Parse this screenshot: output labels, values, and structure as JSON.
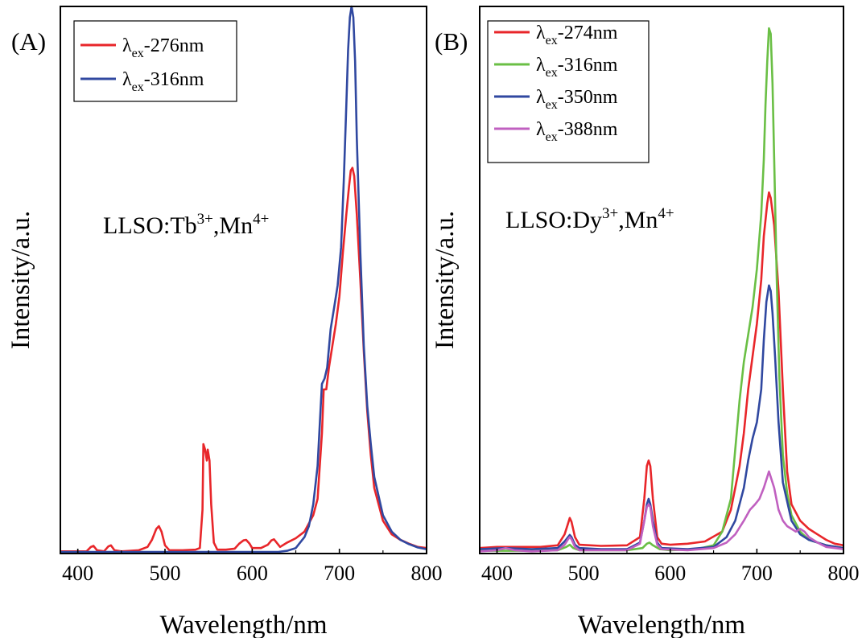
{
  "chart_data": [
    {
      "type": "line",
      "panel_label": "(A)",
      "sample_label": {
        "base": "LLSO:Tb",
        "sup1": "3+",
        "mid": ",Mn",
        "sup2": "4+"
      },
      "xlabel": "Wavelength/nm",
      "ylabel": "Intensity/a.u.",
      "xlim": [
        380,
        800
      ],
      "ylim": [
        0,
        1.0
      ],
      "xticks": [
        400,
        500,
        600,
        700,
        800
      ],
      "legend_position": "top-left",
      "grid": false,
      "series": [
        {
          "name": {
            "prefix": "λ",
            "sub": "ex",
            "suffix": "-276nm"
          },
          "color": "#e8262a",
          "x": [
            380,
            400,
            410,
            415,
            418,
            422,
            430,
            435,
            438,
            442,
            450,
            470,
            480,
            485,
            490,
            493,
            496,
            500,
            505,
            520,
            535,
            540,
            543,
            544,
            546,
            548,
            549,
            551,
            553,
            556,
            560,
            570,
            580,
            585,
            590,
            593,
            597,
            600,
            610,
            618,
            622,
            625,
            628,
            632,
            640,
            650,
            660,
            670,
            675,
            680,
            682,
            685,
            688,
            692,
            696,
            700,
            704,
            708,
            711,
            713,
            715,
            717,
            720,
            724,
            728,
            732,
            736,
            740,
            750,
            760,
            770,
            780,
            790,
            800
          ],
          "y": [
            0.004,
            0.004,
            0.004,
            0.012,
            0.014,
            0.006,
            0.004,
            0.013,
            0.015,
            0.006,
            0.004,
            0.006,
            0.012,
            0.025,
            0.045,
            0.05,
            0.04,
            0.015,
            0.006,
            0.006,
            0.007,
            0.01,
            0.08,
            0.2,
            0.19,
            0.17,
            0.19,
            0.17,
            0.09,
            0.02,
            0.007,
            0.007,
            0.009,
            0.018,
            0.024,
            0.025,
            0.018,
            0.01,
            0.01,
            0.016,
            0.024,
            0.026,
            0.02,
            0.012,
            0.02,
            0.028,
            0.04,
            0.07,
            0.1,
            0.22,
            0.3,
            0.3,
            0.34,
            0.38,
            0.42,
            0.47,
            0.55,
            0.62,
            0.67,
            0.7,
            0.705,
            0.69,
            0.62,
            0.5,
            0.37,
            0.26,
            0.18,
            0.12,
            0.06,
            0.035,
            0.025,
            0.018,
            0.012,
            0.01
          ]
        },
        {
          "name": {
            "prefix": "λ",
            "sub": "ex",
            "suffix": "-316nm"
          },
          "color": "#3048a0",
          "x": [
            380,
            450,
            500,
            550,
            600,
            620,
            630,
            640,
            650,
            660,
            665,
            670,
            675,
            678,
            680,
            683,
            686,
            690,
            694,
            698,
            702,
            705,
            708,
            710,
            712,
            714,
            716,
            718,
            720,
            724,
            728,
            732,
            736,
            740,
            750,
            760,
            770,
            780,
            790,
            800
          ],
          "y": [
            0.003,
            0.003,
            0.003,
            0.003,
            0.003,
            0.003,
            0.003,
            0.005,
            0.01,
            0.03,
            0.05,
            0.09,
            0.16,
            0.25,
            0.31,
            0.32,
            0.34,
            0.41,
            0.45,
            0.49,
            0.56,
            0.68,
            0.82,
            0.92,
            0.98,
            1.0,
            0.98,
            0.9,
            0.76,
            0.55,
            0.38,
            0.27,
            0.2,
            0.14,
            0.07,
            0.04,
            0.025,
            0.017,
            0.011,
            0.008
          ]
        }
      ]
    },
    {
      "type": "line",
      "panel_label": "(B)",
      "sample_label": {
        "base": "LLSO:Dy",
        "sup1": "3+",
        "mid": ",Mn",
        "sup2": "4+"
      },
      "xlabel": "Wavelength/nm",
      "ylabel": "Intensity/a.u.",
      "xlim": [
        380,
        800
      ],
      "ylim": [
        0,
        1.0
      ],
      "xticks": [
        400,
        500,
        600,
        700,
        800
      ],
      "legend_position": "top-left",
      "grid": false,
      "series": [
        {
          "name": {
            "prefix": "λ",
            "sub": "ex",
            "suffix": "-274nm"
          },
          "color": "#e8262a",
          "x": [
            380,
            400,
            450,
            470,
            478,
            482,
            484,
            486,
            490,
            495,
            520,
            550,
            565,
            570,
            573,
            575,
            577,
            580,
            585,
            590,
            600,
            620,
            640,
            660,
            670,
            680,
            685,
            690,
            695,
            700,
            705,
            708,
            712,
            714,
            716,
            720,
            725,
            730,
            735,
            740,
            750,
            760,
            770,
            780,
            790,
            800
          ],
          "y": [
            0.01,
            0.012,
            0.012,
            0.015,
            0.035,
            0.055,
            0.065,
            0.058,
            0.03,
            0.016,
            0.014,
            0.015,
            0.03,
            0.1,
            0.16,
            0.17,
            0.16,
            0.1,
            0.03,
            0.018,
            0.016,
            0.018,
            0.022,
            0.04,
            0.08,
            0.16,
            0.22,
            0.3,
            0.36,
            0.42,
            0.5,
            0.58,
            0.64,
            0.66,
            0.65,
            0.6,
            0.48,
            0.3,
            0.15,
            0.09,
            0.06,
            0.045,
            0.035,
            0.025,
            0.018,
            0.015
          ]
        },
        {
          "name": {
            "prefix": "λ",
            "sub": "ex",
            "suffix": "-316nm"
          },
          "color": "#6abf45",
          "x": [
            380,
            420,
            450,
            470,
            480,
            484,
            488,
            495,
            520,
            550,
            568,
            573,
            576,
            580,
            588,
            600,
            630,
            650,
            660,
            670,
            675,
            680,
            685,
            690,
            695,
            700,
            705,
            708,
            710,
            712,
            714,
            716,
            718,
            720,
            723,
            726,
            730,
            735,
            740,
            750,
            760,
            780,
            800
          ],
          "y": [
            0.005,
            0.005,
            0.005,
            0.006,
            0.012,
            0.016,
            0.01,
            0.006,
            0.006,
            0.006,
            0.01,
            0.018,
            0.02,
            0.015,
            0.008,
            0.006,
            0.008,
            0.015,
            0.04,
            0.1,
            0.19,
            0.28,
            0.35,
            0.4,
            0.45,
            0.52,
            0.62,
            0.72,
            0.82,
            0.9,
            0.96,
            0.95,
            0.86,
            0.72,
            0.5,
            0.32,
            0.18,
            0.11,
            0.07,
            0.04,
            0.025,
            0.015,
            0.01
          ]
        },
        {
          "name": {
            "prefix": "λ",
            "sub": "ex",
            "suffix": "-350nm"
          },
          "color": "#3048a0",
          "x": [
            380,
            410,
            440,
            470,
            478,
            482,
            484,
            486,
            490,
            495,
            520,
            550,
            565,
            570,
            573,
            575,
            577,
            580,
            585,
            590,
            620,
            650,
            665,
            675,
            685,
            690,
            695,
            700,
            705,
            708,
            711,
            714,
            716,
            718,
            721,
            725,
            730,
            740,
            750,
            760,
            780,
            800
          ],
          "y": [
            0.008,
            0.01,
            0.008,
            0.01,
            0.022,
            0.03,
            0.034,
            0.03,
            0.016,
            0.01,
            0.008,
            0.008,
            0.02,
            0.06,
            0.09,
            0.1,
            0.09,
            0.06,
            0.02,
            0.01,
            0.008,
            0.012,
            0.03,
            0.06,
            0.12,
            0.17,
            0.21,
            0.24,
            0.3,
            0.39,
            0.46,
            0.49,
            0.48,
            0.44,
            0.36,
            0.24,
            0.13,
            0.06,
            0.035,
            0.025,
            0.015,
            0.01
          ]
        },
        {
          "name": {
            "prefix": "λ",
            "sub": "ex",
            "suffix": "-388nm"
          },
          "color": "#c060c0",
          "x": [
            380,
            400,
            410,
            420,
            440,
            470,
            478,
            482,
            484,
            486,
            490,
            495,
            520,
            550,
            565,
            570,
            573,
            575,
            577,
            580,
            585,
            590,
            620,
            650,
            665,
            675,
            685,
            692,
            698,
            703,
            708,
            712,
            714,
            716,
            720,
            725,
            730,
            735,
            740,
            745,
            750,
            755,
            760,
            770,
            780,
            800
          ],
          "y": [
            0.004,
            0.006,
            0.01,
            0.006,
            0.004,
            0.006,
            0.016,
            0.026,
            0.03,
            0.026,
            0.012,
            0.006,
            0.006,
            0.006,
            0.018,
            0.06,
            0.085,
            0.09,
            0.085,
            0.05,
            0.016,
            0.008,
            0.006,
            0.01,
            0.02,
            0.035,
            0.06,
            0.08,
            0.09,
            0.1,
            0.12,
            0.14,
            0.15,
            0.14,
            0.12,
            0.08,
            0.06,
            0.05,
            0.045,
            0.04,
            0.045,
            0.04,
            0.03,
            0.02,
            0.012,
            0.008
          ]
        }
      ]
    }
  ]
}
